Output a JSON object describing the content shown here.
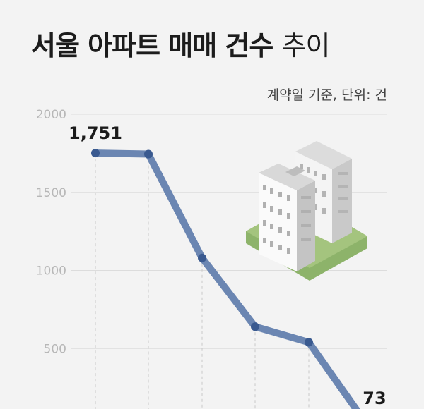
{
  "title": {
    "bold": "서울 아파트 매매 건수",
    "light": "추이"
  },
  "note": "계약일 기준, 단위: 건",
  "colors": {
    "line": "#6b86b2",
    "point": "#3a5a90",
    "grid": "#dcdcdc",
    "background": "#f3f3f3"
  },
  "illustration": "apartment-buildings-icon",
  "chart_data": {
    "type": "line",
    "ylim": [
      0,
      2000
    ],
    "yticks": [
      2000,
      1500,
      1000,
      500
    ],
    "series": [
      {
        "values": [
          1751,
          1745,
          1080,
          640,
          540,
          73
        ]
      }
    ],
    "data_labels": [
      {
        "index": 0,
        "text": "1,751"
      },
      {
        "index": 5,
        "text": "73"
      }
    ],
    "grid": true
  }
}
